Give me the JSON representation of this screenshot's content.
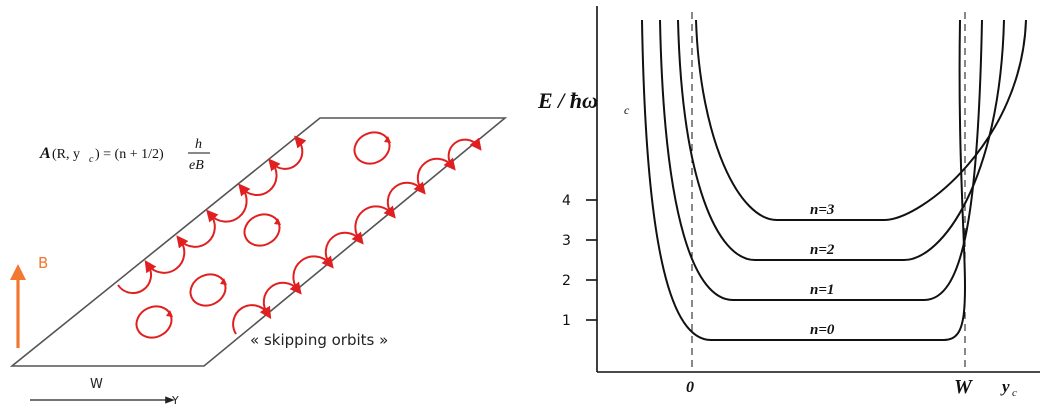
{
  "left": {
    "formula": {
      "lhs_A": "A",
      "lhs_args_open": "(R, y",
      "lhs_sub": "c",
      "lhs_close": ") = (n + 1/2)",
      "frac_num": "h",
      "frac_den": "eB"
    },
    "b_label": "B",
    "w_label": "W",
    "y_label": "Y",
    "skipping_label": "« skipping orbits »",
    "colors": {
      "orbit": "#e02020",
      "b_arrow": "#f07830",
      "outline": "#555555"
    }
  },
  "right": {
    "y_axis_label_main": "E / ħω",
    "y_axis_label_sub": "c",
    "y_ticks": [
      "1",
      "2",
      "3",
      "4"
    ],
    "level_labels": [
      "n=0",
      "n=1",
      "n=2",
      "n=3"
    ],
    "x_tick_zero": "0",
    "x_tick_W": "W",
    "x_axis_label_main": "y",
    "x_axis_label_sub": "c"
  },
  "chart_data": {
    "type": "line",
    "ylabel": "E / ħω_c",
    "xlabel": "y_c",
    "y_ticks": [
      1,
      2,
      3,
      4
    ],
    "x_ticks": [
      "0",
      "W"
    ],
    "series": [
      {
        "name": "n=0",
        "plateau": 0.5
      },
      {
        "name": "n=1",
        "plateau": 1.5
      },
      {
        "name": "n=2",
        "plateau": 2.5
      },
      {
        "name": "n=3",
        "plateau": 3.5
      }
    ]
  }
}
